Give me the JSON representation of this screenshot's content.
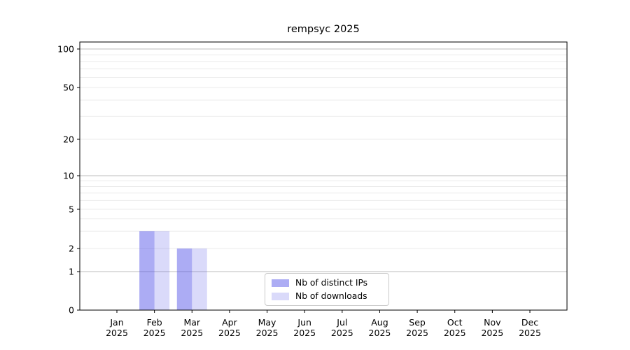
{
  "chart_data": {
    "type": "bar",
    "title": "rempsyc 2025",
    "categories": [
      "Jan",
      "Feb",
      "Mar",
      "Apr",
      "May",
      "Jun",
      "Jul",
      "Aug",
      "Sep",
      "Oct",
      "Nov",
      "Dec"
    ],
    "year_label": "2025",
    "series": [
      {
        "name": "Nb of distinct IPs",
        "color": "rgba(70,70,230,0.45)",
        "values": [
          0,
          3,
          2,
          0,
          0,
          0,
          0,
          0,
          0,
          0,
          0,
          0
        ]
      },
      {
        "name": "Nb of downloads",
        "color": "rgba(70,70,230,0.20)",
        "values": [
          0,
          3,
          2,
          0,
          0,
          0,
          0,
          0,
          0,
          0,
          0,
          0
        ]
      }
    ],
    "yticks": [
      100,
      50,
      20,
      10,
      5,
      2,
      1,
      0
    ],
    "ylim": [
      0,
      115
    ],
    "yscale": "log-like (symlog), linear segment between 0 and 1",
    "xlabel": "",
    "ylabel": "",
    "grid": "horizontal only, major (1,10,100) darker + minor lighter",
    "legend_position": "lower center inside axes"
  },
  "colors": {
    "background": "#ffffff",
    "grid_major": "#bdbdbd",
    "grid_minor": "#ebebeb",
    "spine": "#000000",
    "text": "#000000",
    "legend_border": "#c9c9c9"
  }
}
